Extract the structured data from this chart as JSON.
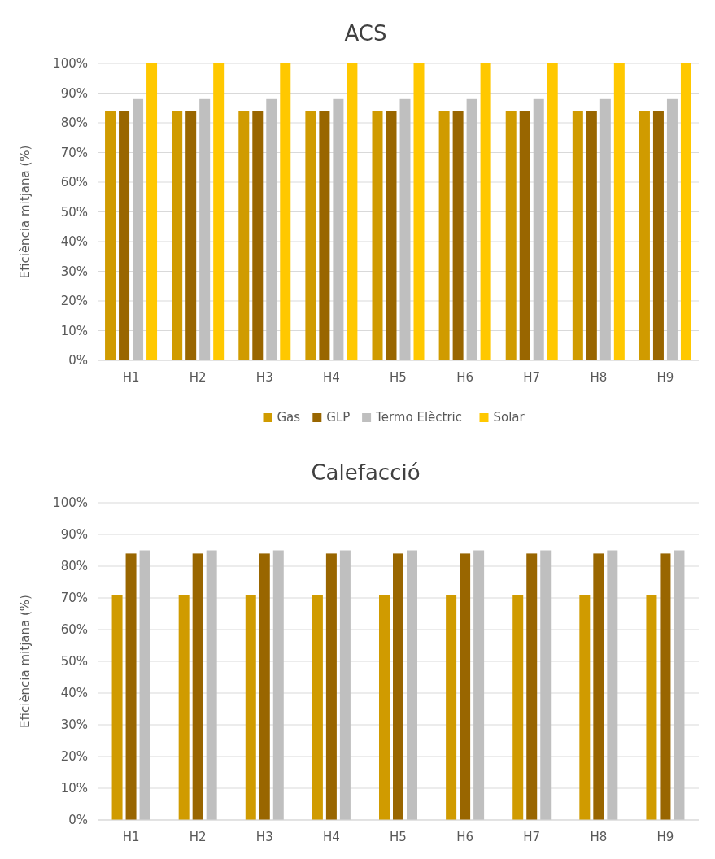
{
  "chart_data": [
    {
      "type": "bar",
      "title": "ACS",
      "ylabel": "Eficiència mitjana (%)",
      "categories": [
        "H1",
        "H2",
        "H3",
        "H4",
        "H5",
        "H6",
        "H7",
        "H8",
        "H9"
      ],
      "series": [
        {
          "name": "Gas",
          "color": "#d09b00",
          "values": [
            84,
            84,
            84,
            84,
            84,
            84,
            84,
            84,
            84
          ]
        },
        {
          "name": "GLP",
          "color": "#996600",
          "values": [
            84,
            84,
            84,
            84,
            84,
            84,
            84,
            84,
            84
          ]
        },
        {
          "name": "Termo Elèctric",
          "color": "#bfbfbf",
          "values": [
            88,
            88,
            88,
            88,
            88,
            88,
            88,
            88,
            88
          ]
        },
        {
          "name": "Solar",
          "color": "#ffc800",
          "values": [
            100,
            100,
            100,
            100,
            100,
            100,
            100,
            100,
            100
          ]
        }
      ],
      "ylim": [
        0,
        100
      ],
      "yticks": [
        {
          "value": 0,
          "label": "0%"
        },
        {
          "value": 10,
          "label": "10%"
        },
        {
          "value": 20,
          "label": "20%"
        },
        {
          "value": 30,
          "label": "30%"
        },
        {
          "value": 40,
          "label": "40%"
        },
        {
          "value": 50,
          "label": "50%"
        },
        {
          "value": 60,
          "label": "60%"
        },
        {
          "value": 70,
          "label": "70%"
        },
        {
          "value": 80,
          "label": "80%"
        },
        {
          "value": 90,
          "label": "90%"
        },
        {
          "value": 100,
          "label": "100%"
        }
      ],
      "grid": "y",
      "legend": "bottom"
    },
    {
      "type": "bar",
      "title": "Calefacció",
      "ylabel": "Eficiència mitjana (%)",
      "categories": [
        "H1",
        "H2",
        "H3",
        "H4",
        "H5",
        "H6",
        "H7",
        "H8",
        "H9"
      ],
      "series": [
        {
          "color": "#d09b00",
          "values": [
            71,
            71,
            71,
            71,
            71,
            71,
            71,
            71,
            71
          ]
        },
        {
          "color": "#996600",
          "values": [
            84,
            84,
            84,
            84,
            84,
            84,
            84,
            84,
            84
          ]
        },
        {
          "color": "#bfbfbf",
          "values": [
            85,
            85,
            85,
            85,
            85,
            85,
            85,
            85,
            85
          ]
        }
      ],
      "ylim": [
        0,
        100
      ],
      "yticks": [
        {
          "value": 0,
          "label": "0%"
        },
        {
          "value": 10,
          "label": "10%"
        },
        {
          "value": 20,
          "label": "20%"
        },
        {
          "value": 30,
          "label": "30%"
        },
        {
          "value": 40,
          "label": "40%"
        },
        {
          "value": 50,
          "label": "50%"
        },
        {
          "value": 60,
          "label": "60%"
        },
        {
          "value": 70,
          "label": "70%"
        },
        {
          "value": 80,
          "label": "80%"
        },
        {
          "value": 90,
          "label": "90%"
        },
        {
          "value": 100,
          "label": "100%"
        }
      ],
      "grid": "y",
      "legend": false
    }
  ]
}
